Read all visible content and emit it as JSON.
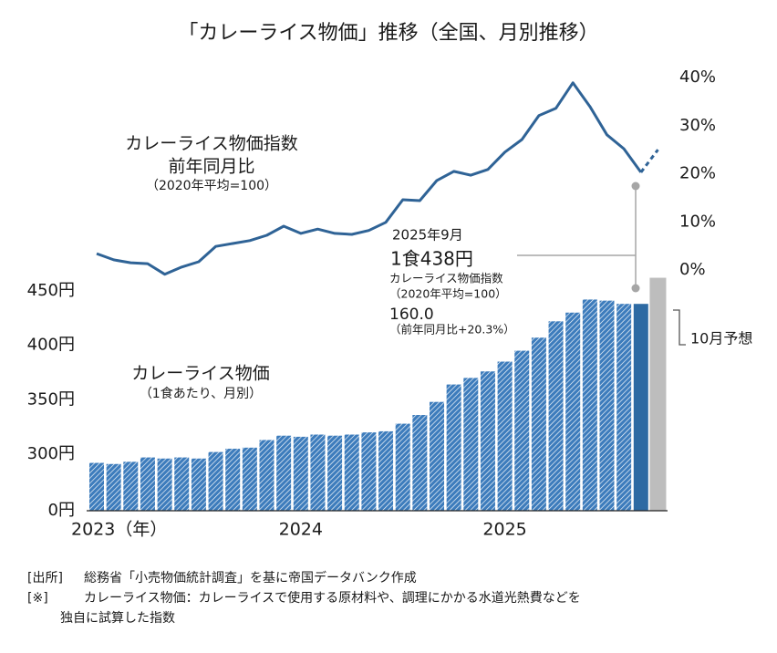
{
  "chart_data": {
    "type": "bar_line",
    "title": "「カレーライス物価」推移（全国、月別推移）",
    "categories": [
      "2023（年）",
      null,
      null,
      null,
      null,
      null,
      null,
      null,
      null,
      null,
      null,
      null,
      "2024",
      null,
      null,
      null,
      null,
      null,
      null,
      null,
      null,
      null,
      null,
      null,
      "2025",
      null,
      null,
      null,
      null,
      null,
      null,
      null,
      null,
      null
    ],
    "series": [
      {
        "name": "カレーライス物価",
        "label_lines": [
          "カレーライス物価",
          "（1食あたり、月別）"
        ],
        "type": "bar",
        "color": "#3d7cbc",
        "highlight_color": "#2d6aa3",
        "values": [
          292,
          291,
          293,
          297,
          296,
          297,
          296,
          302,
          305,
          306,
          313,
          317,
          316,
          318,
          317,
          318,
          320,
          321,
          328,
          336,
          348,
          364,
          370,
          376,
          385,
          395,
          407,
          422,
          430,
          442,
          441,
          438,
          438,
          null
        ]
      },
      {
        "type": "bar",
        "color": "#bdbdbd",
        "values": [
          null,
          null,
          null,
          null,
          null,
          null,
          null,
          null,
          null,
          null,
          null,
          null,
          null,
          null,
          null,
          null,
          null,
          null,
          null,
          null,
          null,
          null,
          null,
          null,
          null,
          null,
          null,
          null,
          null,
          null,
          null,
          null,
          null,
          462
        ]
      },
      {
        "name": "カレーライス物価指数 前年同月比",
        "label_lines": [
          "カレーライス物価指数",
          "前年同月比",
          "（2020年平均=100）"
        ],
        "type": "line",
        "axis": "y2",
        "color": "#2f6396",
        "values": [
          3.4,
          2.1,
          1.5,
          1.3,
          -0.9,
          0.6,
          1.7,
          4.9,
          5.5,
          6.1,
          7.2,
          9.1,
          7.6,
          8.5,
          7.6,
          7.4,
          8.2,
          9.9,
          14.6,
          14.4,
          18.6,
          20.5,
          19.7,
          20.9,
          24.5,
          27.1,
          32.1,
          33.6,
          38.9,
          34.0,
          28.1,
          25.2,
          20.3,
          null
        ]
      },
      {
        "type": "line",
        "axis": "y2",
        "color": "#2f6396",
        "dashed": true,
        "values": [
          null,
          null,
          null,
          null,
          null,
          null,
          null,
          null,
          null,
          null,
          null,
          null,
          null,
          null,
          null,
          null,
          null,
          null,
          null,
          null,
          null,
          null,
          null,
          null,
          null,
          null,
          null,
          null,
          null,
          null,
          null,
          null,
          null,
          25.0
        ]
      }
    ],
    "ylim": [
      0,
      470
    ],
    "yticks": [
      {
        "value": 0,
        "label": "0円"
      },
      {
        "value": 300,
        "label": "300円"
      },
      {
        "value": 350,
        "label": "350円"
      },
      {
        "value": 400,
        "label": "400円"
      },
      {
        "value": 450,
        "label": "450円"
      }
    ],
    "y2lim": [
      0,
      40
    ],
    "y2ticks": [
      {
        "value": 0,
        "label": "0%"
      },
      {
        "value": 10,
        "label": "10%"
      },
      {
        "value": 20,
        "label": "20%"
      },
      {
        "value": 30,
        "label": "30%"
      },
      {
        "value": 40,
        "label": "40%"
      }
    ],
    "axis_break": true,
    "annotations": {
      "callout": [
        "2025年9月",
        "1食438円",
        "カレーライス物価指数",
        "（2020年平均=100）",
        "160.0",
        "（前年同月比+20.3%）"
      ],
      "forecast": "10月予想"
    },
    "notes": [
      {
        "label": "[出所]",
        "lines": [
          "総務省「小売物価統計調査」を基に帝国データバンク作成"
        ]
      },
      {
        "label": "[※]",
        "lines": [
          "カレーライス物価：カレーライスで使用する原材料や、調理にかかる水道光熱費などを",
          "独自に試算した指数"
        ]
      }
    ]
  }
}
